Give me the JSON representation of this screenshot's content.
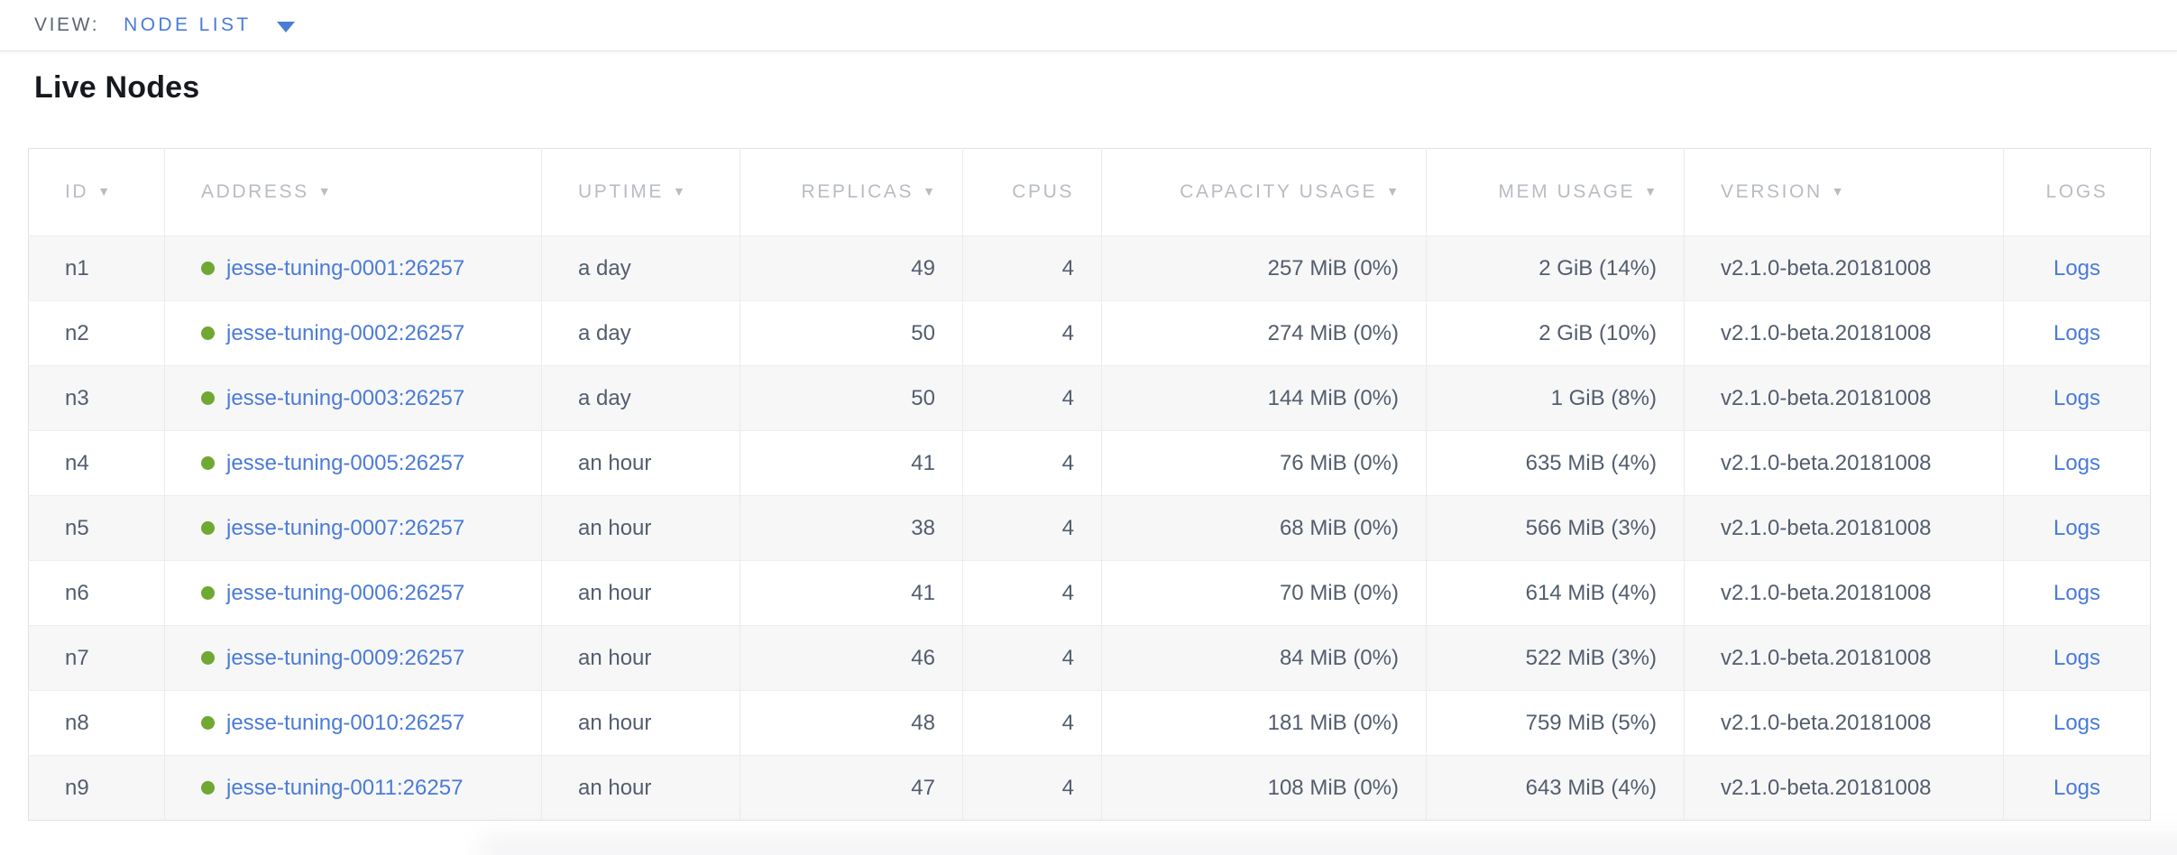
{
  "view_bar": {
    "label": "VIEW:",
    "selected": "NODE LIST",
    "dropdown_icon": "caret-down-icon"
  },
  "page": {
    "title": "Live Nodes"
  },
  "colors": {
    "link_blue": "#4a7bd8",
    "live_node_green": "#6fa832",
    "header_text_gray": "#b8bcc3",
    "row_stripe": "#f7f7f8",
    "cell_text": "#535d6d"
  },
  "table": {
    "sort_icon": "▼",
    "columns": [
      {
        "key": "id",
        "label": "ID",
        "sortable": true,
        "align": "left"
      },
      {
        "key": "address",
        "label": "ADDRESS",
        "sortable": true,
        "align": "left"
      },
      {
        "key": "uptime",
        "label": "UPTIME",
        "sortable": true,
        "align": "left"
      },
      {
        "key": "replicas",
        "label": "REPLICAS",
        "sortable": true,
        "align": "right"
      },
      {
        "key": "cpus",
        "label": "CPUS",
        "sortable": false,
        "align": "right"
      },
      {
        "key": "capacity_usage",
        "label": "CAPACITY USAGE",
        "sortable": true,
        "align": "right"
      },
      {
        "key": "mem_usage",
        "label": "MEM USAGE",
        "sortable": true,
        "align": "right"
      },
      {
        "key": "version",
        "label": "VERSION",
        "sortable": true,
        "align": "left"
      },
      {
        "key": "logs",
        "label": "LOGS",
        "sortable": false,
        "align": "center"
      }
    ],
    "rows": [
      {
        "id": "n1",
        "status": "live",
        "address": "jesse-tuning-0001:26257",
        "uptime": "a day",
        "replicas": "49",
        "cpus": "4",
        "capacity_usage": "257 MiB (0%)",
        "mem_usage": "2 GiB (14%)",
        "version": "v2.1.0-beta.20181008",
        "logs": "Logs"
      },
      {
        "id": "n2",
        "status": "live",
        "address": "jesse-tuning-0002:26257",
        "uptime": "a day",
        "replicas": "50",
        "cpus": "4",
        "capacity_usage": "274 MiB (0%)",
        "mem_usage": "2 GiB (10%)",
        "version": "v2.1.0-beta.20181008",
        "logs": "Logs"
      },
      {
        "id": "n3",
        "status": "live",
        "address": "jesse-tuning-0003:26257",
        "uptime": "a day",
        "replicas": "50",
        "cpus": "4",
        "capacity_usage": "144 MiB (0%)",
        "mem_usage": "1 GiB (8%)",
        "version": "v2.1.0-beta.20181008",
        "logs": "Logs"
      },
      {
        "id": "n4",
        "status": "live",
        "address": "jesse-tuning-0005:26257",
        "uptime": "an hour",
        "replicas": "41",
        "cpus": "4",
        "capacity_usage": "76 MiB (0%)",
        "mem_usage": "635 MiB (4%)",
        "version": "v2.1.0-beta.20181008",
        "logs": "Logs"
      },
      {
        "id": "n5",
        "status": "live",
        "address": "jesse-tuning-0007:26257",
        "uptime": "an hour",
        "replicas": "38",
        "cpus": "4",
        "capacity_usage": "68 MiB (0%)",
        "mem_usage": "566 MiB (3%)",
        "version": "v2.1.0-beta.20181008",
        "logs": "Logs"
      },
      {
        "id": "n6",
        "status": "live",
        "address": "jesse-tuning-0006:26257",
        "uptime": "an hour",
        "replicas": "41",
        "cpus": "4",
        "capacity_usage": "70 MiB (0%)",
        "mem_usage": "614 MiB (4%)",
        "version": "v2.1.0-beta.20181008",
        "logs": "Logs"
      },
      {
        "id": "n7",
        "status": "live",
        "address": "jesse-tuning-0009:26257",
        "uptime": "an hour",
        "replicas": "46",
        "cpus": "4",
        "capacity_usage": "84 MiB (0%)",
        "mem_usage": "522 MiB (3%)",
        "version": "v2.1.0-beta.20181008",
        "logs": "Logs"
      },
      {
        "id": "n8",
        "status": "live",
        "address": "jesse-tuning-0010:26257",
        "uptime": "an hour",
        "replicas": "48",
        "cpus": "4",
        "capacity_usage": "181 MiB (0%)",
        "mem_usage": "759 MiB (5%)",
        "version": "v2.1.0-beta.20181008",
        "logs": "Logs"
      },
      {
        "id": "n9",
        "status": "live",
        "address": "jesse-tuning-0011:26257",
        "uptime": "an hour",
        "replicas": "47",
        "cpus": "4",
        "capacity_usage": "108 MiB (0%)",
        "mem_usage": "643 MiB (4%)",
        "version": "v2.1.0-beta.20181008",
        "logs": "Logs"
      }
    ]
  }
}
